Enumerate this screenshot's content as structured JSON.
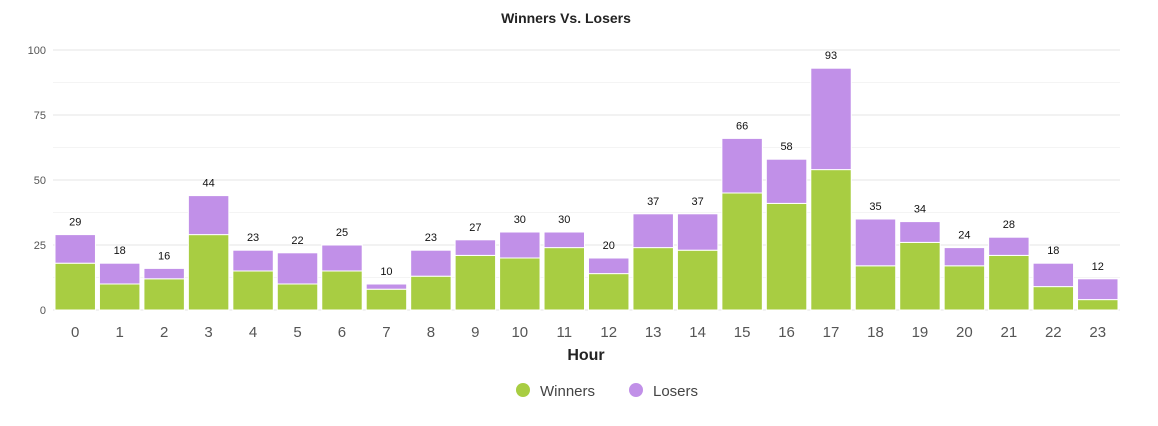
{
  "chart_data": {
    "type": "bar",
    "stacked": true,
    "title": "Winners Vs. Losers",
    "xlabel": "Hour",
    "ylabel": "",
    "ylim": [
      0,
      100
    ],
    "yticks": [
      0,
      25,
      50,
      75,
      100
    ],
    "grid": true,
    "legend_position": "bottom-center",
    "categories": [
      "0",
      "1",
      "2",
      "3",
      "4",
      "5",
      "6",
      "7",
      "8",
      "9",
      "10",
      "11",
      "12",
      "13",
      "14",
      "15",
      "16",
      "17",
      "18",
      "19",
      "20",
      "21",
      "22",
      "23"
    ],
    "series": [
      {
        "name": "Winners",
        "color": "#a8cd42",
        "values": [
          18,
          10,
          12,
          29,
          15,
          10,
          15,
          8,
          13,
          21,
          20,
          24,
          14,
          24,
          23,
          45,
          41,
          54,
          17,
          26,
          17,
          21,
          9,
          4
        ]
      },
      {
        "name": "Losers",
        "color": "#c190e8",
        "values": [
          11,
          8,
          4,
          15,
          8,
          12,
          10,
          2,
          10,
          6,
          10,
          6,
          6,
          13,
          14,
          21,
          17,
          39,
          18,
          8,
          7,
          7,
          9,
          8
        ]
      }
    ],
    "totals": [
      29,
      18,
      16,
      44,
      23,
      22,
      25,
      10,
      23,
      27,
      30,
      30,
      20,
      37,
      37,
      66,
      58,
      93,
      35,
      34,
      24,
      28,
      18,
      12
    ]
  }
}
